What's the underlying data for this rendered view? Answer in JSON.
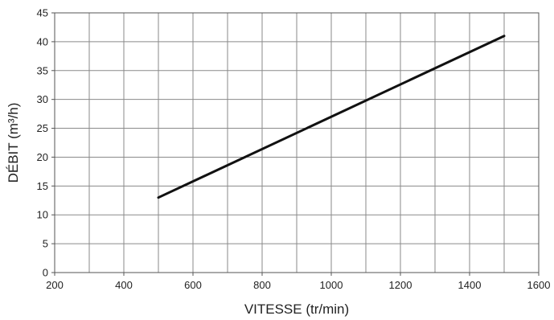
{
  "chart_data": {
    "type": "line",
    "title": "",
    "xlabel": "VITESSE  (tr/min)",
    "ylabel": "DÉBIT  (m³/h)",
    "xlim": [
      200,
      1600
    ],
    "ylim": [
      0,
      45
    ],
    "x_ticks": [
      200,
      400,
      600,
      800,
      1000,
      1200,
      1400,
      1600
    ],
    "y_ticks": [
      0,
      5,
      10,
      15,
      20,
      25,
      30,
      35,
      40,
      45
    ],
    "x_grid_step": 100,
    "grid": true,
    "legend": "none",
    "series": [
      {
        "x": [
          500,
          1500
        ],
        "y": [
          13,
          41
        ],
        "color": "#111111"
      }
    ]
  }
}
